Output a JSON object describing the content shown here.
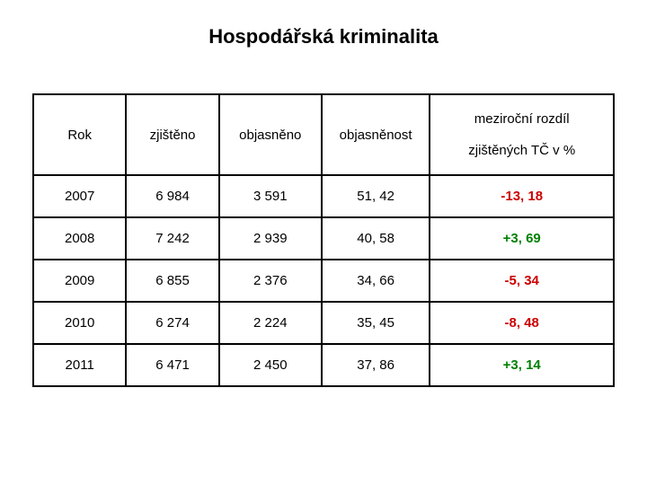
{
  "title": "Hospodářská kriminalita",
  "table": {
    "headers": {
      "rok": "Rok",
      "zjisteno": "zjištěno",
      "objasneno": "objasněno",
      "objasnenost": "objasněnost",
      "mezir_top": "meziroční rozdíl",
      "mezir_bot": "zjištěných TČ v %"
    },
    "rows": [
      {
        "rok": "2007",
        "zjisteno": "6 984",
        "objasneno": "3 591",
        "objasnenost": "51, 42",
        "delta": "-13, 18",
        "delta_class": "neg"
      },
      {
        "rok": "2008",
        "zjisteno": "7 242",
        "objasneno": "2 939",
        "objasnenost": "40, 58",
        "delta": "+3, 69",
        "delta_class": "pos"
      },
      {
        "rok": "2009",
        "zjisteno": "6 855",
        "objasneno": "2 376",
        "objasnenost": "34, 66",
        "delta": "-5, 34",
        "delta_class": "neg"
      },
      {
        "rok": "2010",
        "zjisteno": "6 274",
        "objasneno": "2 224",
        "objasnenost": "35, 45",
        "delta": "-8, 48",
        "delta_class": "neg"
      },
      {
        "rok": "2011",
        "zjisteno": "6 471",
        "objasneno": "2 450",
        "objasnenost": "37, 86",
        "delta": "+3, 14",
        "delta_class": "pos"
      }
    ],
    "colors": {
      "negative": "#cc0000",
      "positive": "#008000",
      "border": "#000000",
      "background": "#ffffff",
      "text": "#000000"
    },
    "font": {
      "family": "Verdana",
      "title_size_pt": 17,
      "cell_size_pt": 11
    }
  }
}
